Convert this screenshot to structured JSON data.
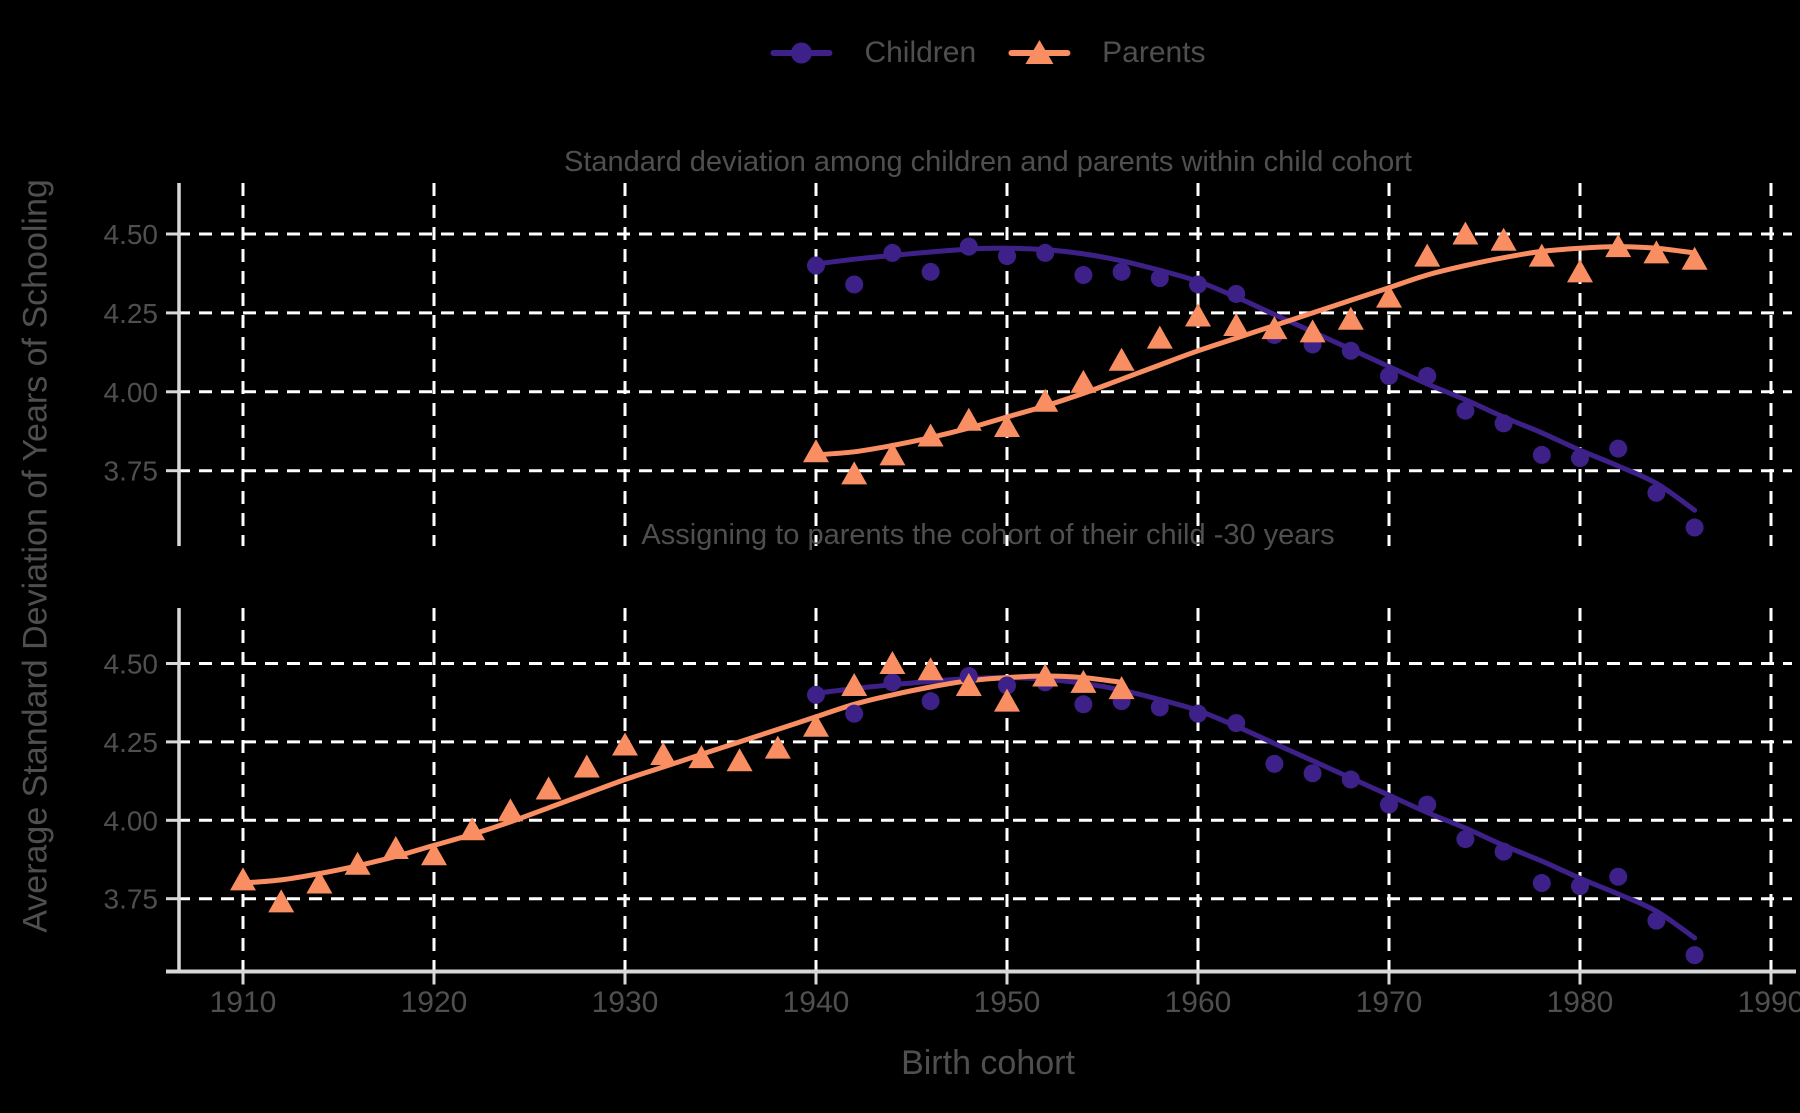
{
  "figure": {
    "background_color": "#000000",
    "text_color": "#4f4f4f",
    "gridline_color": "#ffffff",
    "axis_line_color": "#d8d8d8"
  },
  "legend": {
    "items": [
      {
        "label": "Children",
        "color": "#3E2089",
        "marker": "circle"
      },
      {
        "label": "Parents",
        "color": "#FA8E63",
        "marker": "triangle"
      }
    ]
  },
  "y_axis": {
    "title": "Average Standard Deviation of Years of Schooling",
    "tick_labels": [
      "4.50",
      "4.25",
      "4.00",
      "3.75"
    ],
    "tick_values": [
      4.5,
      4.25,
      4.0,
      3.75
    ]
  },
  "x_axis": {
    "title": "Birth cohort",
    "tick_labels": [
      "1910",
      "1920",
      "1930",
      "1940",
      "1950",
      "1960",
      "1970",
      "1980",
      "1990"
    ],
    "tick_values": [
      1910,
      1920,
      1930,
      1940,
      1950,
      1960,
      1970,
      1980,
      1990
    ]
  },
  "chart_data": [
    {
      "type": "scatter",
      "panel": "top",
      "title": "Standard deviation among children and parents within child cohort",
      "xlim": [
        1906,
        1991
      ],
      "ylim": [
        3.52,
        4.67
      ],
      "grid": "dashed",
      "series": [
        {
          "name": "Children",
          "marker": "circle",
          "color": "#3E2089",
          "x": [
            1940,
            1942,
            1944,
            1946,
            1948,
            1950,
            1952,
            1954,
            1956,
            1958,
            1960,
            1962,
            1964,
            1966,
            1968,
            1970,
            1972,
            1974,
            1976,
            1978,
            1980,
            1982,
            1984,
            1986
          ],
          "y": [
            4.4,
            4.34,
            4.44,
            4.38,
            4.46,
            4.43,
            4.44,
            4.37,
            4.38,
            4.36,
            4.34,
            4.31,
            4.18,
            4.15,
            4.13,
            4.05,
            4.05,
            3.94,
            3.9,
            3.8,
            3.79,
            3.82,
            3.68,
            3.57
          ]
        },
        {
          "name": "Parents",
          "marker": "triangle",
          "color": "#FA8E63",
          "x": [
            1940,
            1942,
            1944,
            1946,
            1948,
            1950,
            1952,
            1954,
            1956,
            1958,
            1960,
            1962,
            1964,
            1966,
            1968,
            1970,
            1972,
            1974,
            1976,
            1978,
            1980,
            1982,
            1984,
            1986
          ],
          "y": [
            3.81,
            3.74,
            3.8,
            3.86,
            3.91,
            3.89,
            3.97,
            4.03,
            4.1,
            4.17,
            4.24,
            4.21,
            4.2,
            4.19,
            4.23,
            4.3,
            4.43,
            4.5,
            4.48,
            4.43,
            4.38,
            4.46,
            4.44,
            4.42
          ]
        }
      ],
      "smooth_lines": [
        {
          "name": "Children",
          "color": "#3E2089",
          "x": [
            1940,
            1942,
            1944,
            1946,
            1948,
            1950,
            1952,
            1954,
            1956,
            1958,
            1960,
            1962,
            1964,
            1966,
            1968,
            1970,
            1972,
            1974,
            1976,
            1978,
            1980,
            1982,
            1984,
            1986
          ],
          "y": [
            4.405,
            4.42,
            4.432,
            4.443,
            4.452,
            4.455,
            4.45,
            4.437,
            4.415,
            4.385,
            4.35,
            4.3,
            4.245,
            4.19,
            4.135,
            4.08,
            4.025,
            3.975,
            3.92,
            3.87,
            3.815,
            3.765,
            3.71,
            3.625
          ]
        },
        {
          "name": "Parents",
          "color": "#FA8E63",
          "x": [
            1940,
            1942,
            1944,
            1946,
            1948,
            1950,
            1952,
            1954,
            1956,
            1958,
            1960,
            1962,
            1964,
            1966,
            1968,
            1970,
            1972,
            1974,
            1976,
            1978,
            1980,
            1982,
            1984,
            1986
          ],
          "y": [
            3.8,
            3.81,
            3.83,
            3.855,
            3.885,
            3.92,
            3.955,
            3.995,
            4.04,
            4.085,
            4.13,
            4.17,
            4.21,
            4.25,
            4.29,
            4.33,
            4.37,
            4.4,
            4.425,
            4.445,
            4.455,
            4.46,
            4.455,
            4.44
          ]
        }
      ]
    },
    {
      "type": "scatter",
      "panel": "bottom",
      "title": "Assigning to parents the cohort of their child -30 years",
      "xlim": [
        1906,
        1991
      ],
      "ylim": [
        3.52,
        4.67
      ],
      "grid": "dashed",
      "series": [
        {
          "name": "Children",
          "marker": "circle",
          "color": "#3E2089",
          "x": [
            1940,
            1942,
            1944,
            1946,
            1948,
            1950,
            1952,
            1954,
            1956,
            1958,
            1960,
            1962,
            1964,
            1966,
            1968,
            1970,
            1972,
            1974,
            1976,
            1978,
            1980,
            1982,
            1984,
            1986
          ],
          "y": [
            4.4,
            4.34,
            4.44,
            4.38,
            4.46,
            4.43,
            4.44,
            4.37,
            4.38,
            4.36,
            4.34,
            4.31,
            4.18,
            4.15,
            4.13,
            4.05,
            4.05,
            3.94,
            3.9,
            3.8,
            3.79,
            3.82,
            3.68,
            3.57
          ]
        },
        {
          "name": "Parents",
          "marker": "triangle",
          "color": "#FA8E63",
          "x": [
            1910,
            1912,
            1914,
            1916,
            1918,
            1920,
            1922,
            1924,
            1926,
            1928,
            1930,
            1932,
            1934,
            1936,
            1938,
            1940,
            1942,
            1944,
            1946,
            1948,
            1950,
            1952,
            1954,
            1956
          ],
          "y": [
            3.81,
            3.74,
            3.8,
            3.86,
            3.91,
            3.89,
            3.97,
            4.03,
            4.1,
            4.17,
            4.24,
            4.21,
            4.2,
            4.19,
            4.23,
            4.3,
            4.43,
            4.5,
            4.48,
            4.43,
            4.38,
            4.46,
            4.44,
            4.42
          ]
        }
      ],
      "smooth_lines": [
        {
          "name": "Children",
          "color": "#3E2089",
          "x": [
            1940,
            1942,
            1944,
            1946,
            1948,
            1950,
            1952,
            1954,
            1956,
            1958,
            1960,
            1962,
            1964,
            1966,
            1968,
            1970,
            1972,
            1974,
            1976,
            1978,
            1980,
            1982,
            1984,
            1986
          ],
          "y": [
            4.405,
            4.42,
            4.432,
            4.443,
            4.452,
            4.455,
            4.45,
            4.437,
            4.415,
            4.385,
            4.35,
            4.3,
            4.245,
            4.19,
            4.135,
            4.08,
            4.025,
            3.975,
            3.92,
            3.87,
            3.815,
            3.765,
            3.71,
            3.625
          ]
        },
        {
          "name": "Parents",
          "color": "#FA8E63",
          "x": [
            1910,
            1912,
            1914,
            1916,
            1918,
            1920,
            1922,
            1924,
            1926,
            1928,
            1930,
            1932,
            1934,
            1936,
            1938,
            1940,
            1942,
            1944,
            1946,
            1948,
            1950,
            1952,
            1954,
            1956
          ],
          "y": [
            3.8,
            3.81,
            3.83,
            3.855,
            3.885,
            3.92,
            3.955,
            3.995,
            4.04,
            4.085,
            4.13,
            4.17,
            4.21,
            4.25,
            4.29,
            4.33,
            4.37,
            4.4,
            4.425,
            4.445,
            4.455,
            4.46,
            4.455,
            4.44
          ]
        }
      ]
    }
  ]
}
